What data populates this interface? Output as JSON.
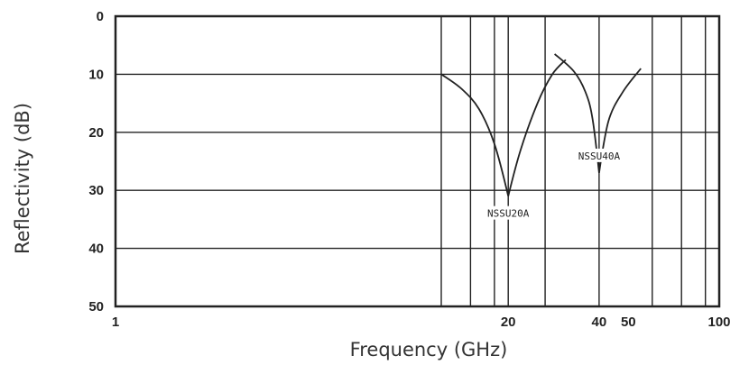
{
  "chart_data": {
    "type": "line",
    "title": "",
    "xlabel": "Frequency (GHz)",
    "ylabel": "Reflectivity (dB)",
    "x_scale": "log",
    "y_inverted": true,
    "xlim": [
      1,
      100
    ],
    "ylim": [
      0,
      50
    ],
    "x_ticks": [
      {
        "value": 1,
        "label": "1"
      },
      {
        "value": 20,
        "label": "20"
      },
      {
        "value": 40,
        "label": "40"
      },
      {
        "value": 50,
        "label": "50"
      },
      {
        "value": 100,
        "label": "100"
      }
    ],
    "y_ticks": [
      {
        "value": 0,
        "label": "0"
      },
      {
        "value": 10,
        "label": "10"
      },
      {
        "value": 20,
        "label": "20"
      },
      {
        "value": 30,
        "label": "30"
      },
      {
        "value": 40,
        "label": "40"
      },
      {
        "value": 50,
        "label": "50"
      }
    ],
    "x_gridlines": [
      12,
      15,
      18,
      20,
      26.5,
      40,
      60,
      75,
      90
    ],
    "y_gridlines": [
      10,
      20,
      30,
      40
    ],
    "grid": true,
    "series": [
      {
        "name": "NSSU20A",
        "color": "#222222",
        "x": [
          12,
          14,
          16,
          18,
          20,
          22,
          25,
          28,
          31
        ],
        "y": [
          10,
          12.5,
          16,
          22,
          31,
          23,
          15,
          10,
          7.5
        ]
      },
      {
        "name": "NSSU40A",
        "color": "#222222",
        "x": [
          28.5,
          33,
          36,
          38,
          40,
          43,
          48,
          55
        ],
        "y": [
          6.5,
          9.5,
          13,
          17.5,
          27,
          18,
          13,
          9
        ]
      }
    ]
  }
}
